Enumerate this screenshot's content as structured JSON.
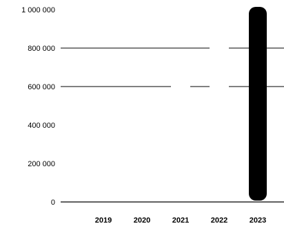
{
  "chart_data": {
    "type": "bar",
    "categories": [
      "2019",
      "2020",
      "2021",
      "2022",
      "2023"
    ],
    "values": [
      0,
      0,
      0,
      0,
      1000000
    ],
    "y_ticks": [
      "0",
      "200 000",
      "400 000",
      "600 000",
      "800 000",
      "1 000 000"
    ],
    "ylim": [
      0,
      1000000
    ],
    "grid": true,
    "legend": "none",
    "title": "",
    "xlabel": "",
    "ylabel": "",
    "colors": {
      "bar": "#000000",
      "grid": "#000000",
      "axis": "#000000",
      "text": "#000000"
    }
  }
}
